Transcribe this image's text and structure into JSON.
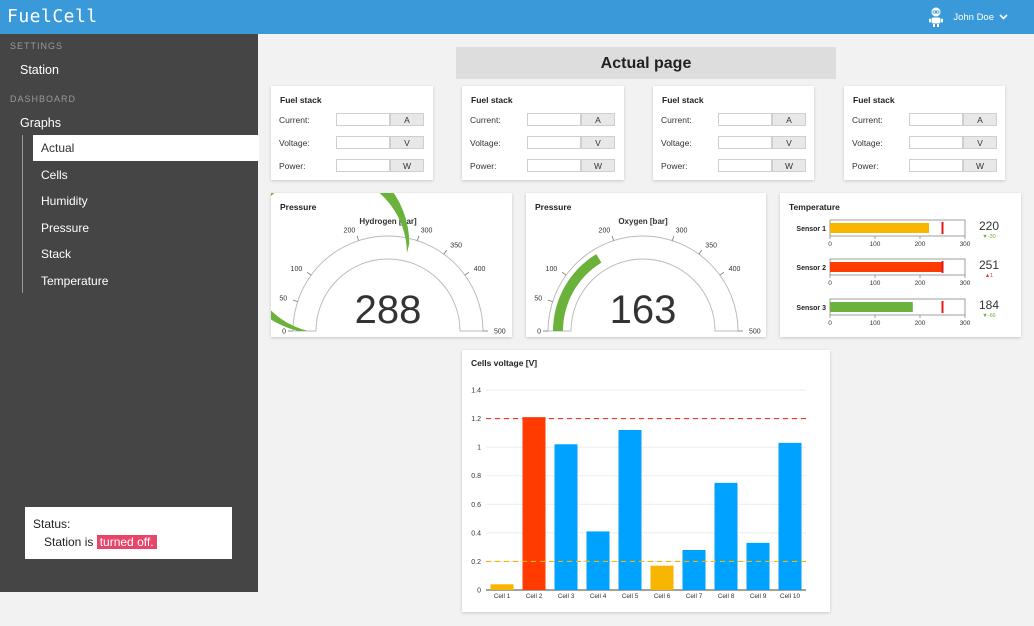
{
  "app": {
    "title": "FuelCell"
  },
  "user": {
    "name": "John Doe",
    "avatar_icon": "robot-icon",
    "menu_icon": "chevron-down-icon"
  },
  "sidebar": {
    "settings_label": "SETTINGS",
    "station_label": "Station",
    "dashboard_label": "DASHBOARD",
    "graphs_label": "Graphs",
    "items": [
      {
        "label": "Actual",
        "active": true
      },
      {
        "label": "Cells",
        "active": false
      },
      {
        "label": "Humidity",
        "active": false
      },
      {
        "label": "Pressure",
        "active": false
      },
      {
        "label": "Stack",
        "active": false
      },
      {
        "label": "Temperature",
        "active": false
      }
    ]
  },
  "status": {
    "title": "Status:",
    "prefix": "Station is",
    "state": "turned off."
  },
  "page": {
    "header": "Actual page"
  },
  "fuel_stacks": [
    {
      "title": "Fuel stack",
      "rows": [
        {
          "label": "Current:",
          "value": "",
          "unit": "A"
        },
        {
          "label": "Voltage:",
          "value": "",
          "unit": "V"
        },
        {
          "label": "Power:",
          "value": "",
          "unit": "W"
        }
      ]
    },
    {
      "title": "Fuel stack",
      "rows": [
        {
          "label": "Current:",
          "value": "",
          "unit": "A"
        },
        {
          "label": "Voltage:",
          "value": "",
          "unit": "V"
        },
        {
          "label": "Power:",
          "value": "",
          "unit": "W"
        }
      ]
    },
    {
      "title": "Fuel stack",
      "rows": [
        {
          "label": "Current:",
          "value": "",
          "unit": "A"
        },
        {
          "label": "Voltage:",
          "value": "",
          "unit": "V"
        },
        {
          "label": "Power:",
          "value": "",
          "unit": "W"
        }
      ]
    },
    {
      "title": "Fuel stack",
      "rows": [
        {
          "label": "Current:",
          "value": "",
          "unit": "A"
        },
        {
          "label": "Voltage:",
          "value": "",
          "unit": "V"
        },
        {
          "label": "Power:",
          "value": "",
          "unit": "W"
        }
      ]
    }
  ],
  "gauges": [
    {
      "card_title": "Pressure",
      "label": "Hydrogen [bar]",
      "value": 288,
      "display": "288",
      "min": 0,
      "max": 500,
      "ticks": [
        "0",
        "50",
        "100",
        "200",
        "300",
        "350",
        "400",
        "500"
      ],
      "tick_values": [
        0,
        50,
        100,
        200,
        300,
        350,
        400,
        500
      ],
      "color": "#6ab23a"
    },
    {
      "card_title": "Pressure",
      "label": "Oxygen [bar]",
      "value": 163,
      "display": "163",
      "min": 0,
      "max": 500,
      "ticks": [
        "0",
        "50",
        "100",
        "200",
        "300",
        "350",
        "400",
        "500"
      ],
      "tick_values": [
        0,
        50,
        100,
        200,
        300,
        350,
        400,
        500
      ],
      "color": "#6ab23a"
    }
  ],
  "temperature": {
    "title": "Temperature",
    "axis_max": 300,
    "ticks": [
      "0",
      "100",
      "200",
      "300"
    ],
    "tick_values": [
      0,
      100,
      200,
      300
    ],
    "sensors": [
      {
        "name": "Sensor 1",
        "value": 220,
        "display": "220",
        "delta": "▼-30",
        "delta_color": "#6ab23a",
        "target": 250,
        "color": "#f7b500"
      },
      {
        "name": "Sensor 2",
        "value": 251,
        "display": "251",
        "delta": "▲1",
        "delta_color": "#e83a2a",
        "target": 250,
        "color": "#ff3b00"
      },
      {
        "name": "Sensor 3",
        "value": 184,
        "display": "184",
        "delta": "▼-66",
        "delta_color": "#6ab23a",
        "target": 250,
        "color": "#6ab23a"
      }
    ]
  },
  "chart_data": {
    "type": "bar",
    "title": "Cells voltage [V]",
    "categories": [
      "Cell 1",
      "Cell 2",
      "Cell 3",
      "Cell 4",
      "Cell 5",
      "Cell 6",
      "Cell 7",
      "Cell 8",
      "Cell 9",
      "Cell 10"
    ],
    "values": [
      0.04,
      1.21,
      1.02,
      0.41,
      1.12,
      0.17,
      0.28,
      0.75,
      0.33,
      1.03
    ],
    "colors": [
      "#f7b500",
      "#ff3b00",
      "#00a2ff",
      "#00a2ff",
      "#00a2ff",
      "#f7b500",
      "#00a2ff",
      "#00a2ff",
      "#00a2ff",
      "#00a2ff"
    ],
    "ylim": [
      0,
      1.4
    ],
    "yticks": [
      0,
      0.2,
      0.4,
      0.6,
      0.8,
      1,
      1.2,
      1.4
    ],
    "ytick_labels": [
      "0",
      "0.2",
      "0.4",
      "0.6",
      "0.8",
      "1",
      "1.2",
      "1.4"
    ],
    "thresholds": [
      {
        "value": 1.2,
        "color": "#e83a2a"
      },
      {
        "value": 0.2,
        "color": "#f7b500"
      }
    ],
    "grid": true,
    "legend": "none"
  }
}
